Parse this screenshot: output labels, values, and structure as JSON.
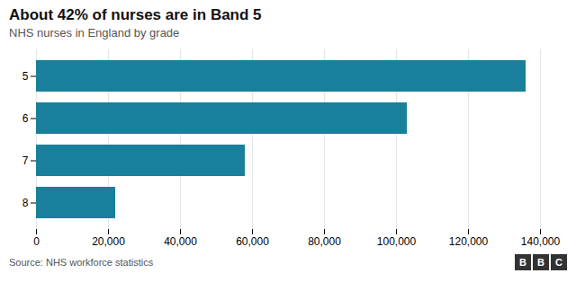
{
  "chart_data": {
    "type": "bar",
    "orientation": "horizontal",
    "title": "About 42% of nurses are in Band 5",
    "subtitle": "NHS nurses in England by grade",
    "source": "Source: NHS workforce statistics",
    "logo": "BBC",
    "categories": [
      "5",
      "6",
      "7",
      "8"
    ],
    "values": [
      136000,
      103000,
      58000,
      22000
    ],
    "color": "#1a7f9a",
    "xlim": [
      0,
      140000
    ],
    "xticks": [
      0,
      {
        "value": 20000,
        "label": "20,000"
      },
      {
        "value": 40000,
        "label": "40,000"
      },
      {
        "value": 60000,
        "label": "60,000"
      },
      {
        "value": 80000,
        "label": "80,000"
      },
      {
        "value": 100000,
        "label": "100,000"
      },
      {
        "value": 120000,
        "label": "120,000"
      },
      {
        "value": 140000,
        "label": "140,000"
      }
    ],
    "grid": true
  }
}
